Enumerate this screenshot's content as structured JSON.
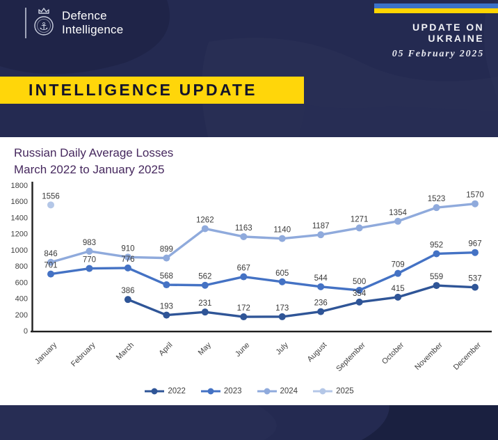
{
  "header": {
    "logo_line1": "Defence",
    "logo_line2": "Intelligence",
    "update_title": "UPDATE ON UKRAINE",
    "date": "05 February 2025"
  },
  "banner": {
    "title": "INTELLIGENCE UPDATE"
  },
  "colors": {
    "background": "#242a51",
    "banner_yellow": "#ffd60a",
    "flag_blue": "#3b72c8",
    "flag_yellow": "#ffd500",
    "title_purple": "#46285e",
    "axis": "#1f1f1f",
    "label_gray": "#3a3a3a"
  },
  "chart_data": {
    "type": "line",
    "title": "Russian Daily Average Losses",
    "subtitle": "March 2022 to January 2025",
    "categories": [
      "January",
      "February",
      "March",
      "April",
      "May",
      "June",
      "July",
      "August",
      "September",
      "October",
      "November",
      "December"
    ],
    "series": [
      {
        "name": "2022",
        "color": "#2F5597",
        "values": [
          null,
          null,
          386,
          193,
          231,
          172,
          173,
          236,
          354,
          415,
          559,
          537
        ]
      },
      {
        "name": "2023",
        "color": "#4472C4",
        "values": [
          701,
          770,
          776,
          568,
          562,
          667,
          605,
          544,
          500,
          709,
          952,
          967
        ]
      },
      {
        "name": "2024",
        "color": "#8FAADC",
        "values": [
          846,
          983,
          910,
          899,
          1262,
          1163,
          1140,
          1187,
          1271,
          1354,
          1523,
          1570
        ]
      },
      {
        "name": "2025",
        "color": "#B4C7E7",
        "values": [
          1556,
          null,
          null,
          null,
          null,
          null,
          null,
          null,
          null,
          null,
          null,
          null
        ]
      }
    ],
    "ylim": [
      0,
      1800
    ],
    "ytick_step": 200,
    "grid": false,
    "data_labels": true,
    "xtick_rotation": -45,
    "legend_position": "bottom"
  }
}
